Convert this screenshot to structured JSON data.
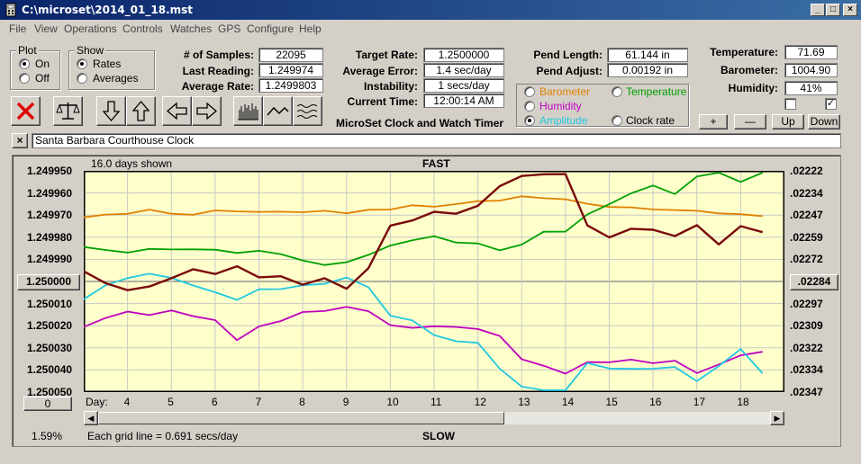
{
  "window": {
    "title": "C:\\microset\\2014_01_18.mst",
    "min": "_",
    "max": "□",
    "close": "×"
  },
  "menu": [
    "File",
    "View",
    "Operations",
    "Controls",
    "Watches",
    "GPS",
    "Configure",
    "Help"
  ],
  "plot": {
    "label": "Plot",
    "on": "On",
    "off": "Off",
    "selected": "On"
  },
  "show": {
    "label": "Show",
    "rates": "Rates",
    "averages": "Averages",
    "selected": "Rates"
  },
  "stats": {
    "samples_label": "# of Samples:",
    "samples": "22095",
    "last_label": "Last Reading:",
    "last": "1.249974",
    "avg_rate_label": "Average Rate:",
    "avg_rate": "1.2499803"
  },
  "target": {
    "target_label": "Target Rate:",
    "target": "1.2500000",
    "avg_err_label": "Average Error:",
    "avg_err": "1.4 sec/day",
    "instab_label": "Instability:",
    "instab": "1 secs/day",
    "time_label": "Current Time:",
    "time": "12:00:14 AM"
  },
  "app_name": "MicroSet Clock and Watch Timer",
  "pend": {
    "length_label": "Pend Length:",
    "length": "61.144 in",
    "adjust_label": "Pend Adjust:",
    "adjust": "0.00192 in"
  },
  "sensor_options": [
    {
      "label": "Barometer",
      "color": "#e08000",
      "selected": false
    },
    {
      "label": "Temperature",
      "color": "#00a000",
      "selected": false
    },
    {
      "label": "Humidity",
      "color": "#c000c0",
      "selected": false
    },
    {
      "label": "Amplitude",
      "color": "#20c8e0",
      "selected": true
    },
    {
      "label": "Clock rate",
      "color": "#000000",
      "selected": false
    }
  ],
  "env": {
    "temp_label": "Temperature:",
    "temp": "71.69",
    "baro_label": "Barometer:",
    "baro": "1004.90",
    "hum_label": "Humidity:",
    "hum": "41%",
    "check1": false,
    "check2": true
  },
  "zoom_buttons": {
    "plus": "+",
    "minus": "—",
    "up": "Up",
    "down": "Down"
  },
  "clock_name": "Santa Barbara Courthouse Clock",
  "clear_button": "×",
  "chart_data": {
    "type": "line",
    "days_shown": "16.0 days shown",
    "top_label": "FAST",
    "bottom_label": "SLOW",
    "grid_note": "Each grid line = 0.691 secs/day",
    "percent": "1.59%",
    "day_prefix": "Day:",
    "days": [
      "4",
      "5",
      "6",
      "7",
      "8",
      "9",
      "10",
      "11",
      "12",
      "13",
      "14",
      "15",
      "16",
      "17",
      "18"
    ],
    "left_ticks": [
      "1.249950",
      "1.249960",
      "1.249970",
      "1.249980",
      "1.249990",
      "1.250000",
      "1.250010",
      "1.250020",
      "1.250030",
      "1.250040",
      "1.250050"
    ],
    "right_ticks": [
      ".02222",
      ".02234",
      ".02247",
      ".02259",
      ".02272",
      ".02284",
      ".02297",
      ".02309",
      ".02322",
      ".02334",
      ".02347"
    ],
    "center_left": "1.250000",
    "center_right": ".02284",
    "scroll_value": "0",
    "ylim": [
      1.24995,
      1.25005
    ],
    "xlim": [
      3.0,
      19.0
    ],
    "series": [
      {
        "name": "Barometer",
        "color": "#e08000",
        "x": [
          3.0,
          3.5,
          4.0,
          4.5,
          5.0,
          5.5,
          6.0,
          6.5,
          7.0,
          7.5,
          8.0,
          8.5,
          9.0,
          9.5,
          10.0,
          10.5,
          11.0,
          11.5,
          12.0,
          12.5,
          13.0,
          13.5,
          14.0,
          14.5,
          15.0,
          15.5,
          16.0,
          16.5,
          17.0,
          17.5,
          18.0,
          18.5
        ],
        "y": [
          1.249971,
          1.24997,
          1.249969,
          1.249968,
          1.249969,
          1.24997,
          1.249968,
          1.249968,
          1.249969,
          1.249968,
          1.249969,
          1.249968,
          1.249969,
          1.249968,
          1.249967,
          1.249966,
          1.249966,
          1.249965,
          1.249964,
          1.249963,
          1.249962,
          1.249962,
          1.249963,
          1.249965,
          1.249966,
          1.249967,
          1.249967,
          1.249968,
          1.249968,
          1.249969,
          1.24997,
          1.24997
        ]
      },
      {
        "name": "Temperature",
        "color": "#00a000",
        "x": [
          3.0,
          3.5,
          4.0,
          4.5,
          5.0,
          5.5,
          6.0,
          6.5,
          7.0,
          7.5,
          8.0,
          8.5,
          9.0,
          9.5,
          10.0,
          10.5,
          11.0,
          11.5,
          12.0,
          12.5,
          13.0,
          13.5,
          14.0,
          14.5,
          15.0,
          15.5,
          16.0,
          16.5,
          17.0,
          17.5,
          18.0,
          18.5
        ],
        "y": [
          1.249984,
          1.249986,
          1.249987,
          1.249985,
          1.249986,
          1.249985,
          1.249986,
          1.249987,
          1.249986,
          1.249988,
          1.24999,
          1.249993,
          1.249991,
          1.249988,
          1.249984,
          1.249981,
          1.24998,
          1.249982,
          1.249983,
          1.249986,
          1.249983,
          1.249978,
          1.249977,
          1.24997,
          1.249965,
          1.24996,
          1.249957,
          1.24996,
          1.249953,
          1.24995,
          1.249955,
          1.249951
        ]
      },
      {
        "name": "Humidity",
        "color": "#c000c0",
        "x": [
          3.0,
          3.5,
          4.0,
          4.5,
          5.0,
          5.5,
          6.0,
          6.5,
          7.0,
          7.5,
          8.0,
          8.5,
          9.0,
          9.5,
          10.0,
          10.5,
          11.0,
          11.5,
          12.0,
          12.5,
          13.0,
          13.5,
          14.0,
          14.5,
          15.0,
          15.5,
          16.0,
          16.5,
          17.0,
          17.5,
          18.0,
          18.5
        ],
        "y": [
          1.250021,
          1.250016,
          1.250014,
          1.250015,
          1.250013,
          1.250016,
          1.250017,
          1.250027,
          1.25002,
          1.250018,
          1.250014,
          1.250013,
          1.250012,
          1.250013,
          1.25002,
          1.250021,
          1.25002,
          1.250021,
          1.250021,
          1.250025,
          1.250035,
          1.250038,
          1.250042,
          1.250036,
          1.250037,
          1.250035,
          1.250037,
          1.250036,
          1.250041,
          1.250038,
          1.250033,
          1.250032
        ]
      },
      {
        "name": "Amplitude",
        "color": "#20c8e0",
        "x": [
          3.0,
          3.5,
          4.0,
          4.5,
          5.0,
          5.5,
          6.0,
          6.5,
          7.0,
          7.5,
          8.0,
          8.5,
          9.0,
          9.5,
          10.0,
          10.5,
          11.0,
          11.5,
          12.0,
          12.5,
          13.0,
          13.5,
          14.0,
          14.5,
          15.0,
          15.5,
          16.0,
          16.5,
          17.0,
          17.5,
          18.0,
          18.5
        ],
        "y": [
          1.250008,
          1.250002,
          1.249998,
          1.249997,
          1.249998,
          1.250002,
          1.250005,
          1.250008,
          1.250004,
          1.250003,
          1.250002,
          1.250001,
          1.249998,
          1.250003,
          1.250015,
          1.250018,
          1.250024,
          1.250027,
          1.250028,
          1.250039,
          1.250048,
          1.25005,
          1.25005,
          1.250037,
          1.250039,
          1.25004,
          1.250039,
          1.250039,
          1.250045,
          1.250038,
          1.250031,
          1.250041
        ]
      },
      {
        "name": "Clock rate",
        "color": "#7a0a0a",
        "x": [
          3.0,
          3.5,
          4.0,
          4.5,
          5.0,
          5.5,
          6.0,
          6.5,
          7.0,
          7.5,
          8.0,
          8.5,
          9.0,
          9.5,
          10.0,
          10.5,
          11.0,
          11.5,
          12.0,
          12.5,
          13.0,
          13.5,
          14.0,
          14.5,
          15.0,
          15.5,
          16.0,
          16.5,
          17.0,
          17.5,
          18.0,
          18.5
        ],
        "y": [
          1.249995,
          1.250001,
          1.250004,
          1.250002,
          1.249999,
          1.249994,
          1.249997,
          1.249993,
          1.249998,
          1.249998,
          1.250001,
          1.249999,
          1.250003,
          1.249994,
          1.249975,
          1.249972,
          1.249969,
          1.249969,
          1.249966,
          1.249957,
          1.249952,
          1.249952,
          1.249951,
          1.249975,
          1.24998,
          1.249976,
          1.249977,
          1.249979,
          1.249975,
          1.249983,
          1.249975,
          1.249978
        ]
      }
    ]
  }
}
